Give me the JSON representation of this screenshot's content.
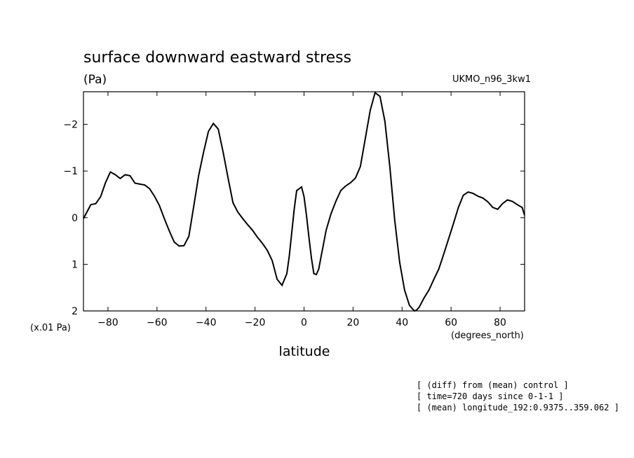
{
  "chart_data": {
    "type": "line",
    "title": "surface downward eastward stress",
    "units_label": "(Pa)",
    "model_label": "UKMO_n96_3kw1",
    "xlabel": "latitude",
    "x_units": "(degrees_north)",
    "y_scale_label": "(x.01 Pa)",
    "xlim": [
      -90,
      90
    ],
    "ylim": [
      2,
      -2.7
    ],
    "y_inverted": true,
    "xticks": [
      -80,
      -60,
      -40,
      -20,
      0,
      20,
      40,
      60,
      80
    ],
    "xtick_labels": [
      "−80",
      "−60",
      "−40",
      "−20",
      "0",
      "20",
      "40",
      "60",
      "80"
    ],
    "yticks": [
      -2,
      -1,
      0,
      1,
      2
    ],
    "ytick_labels": [
      "−2",
      "−1",
      "0",
      "1",
      "2"
    ],
    "grid": false,
    "series": [
      {
        "x": [
          -90,
          -89,
          -87,
          -85,
          -83,
          -81,
          -79,
          -77,
          -75,
          -73,
          -71,
          -69,
          -67,
          -65,
          -63,
          -61,
          -59,
          -57,
          -55,
          -53,
          -51,
          -49,
          -47,
          -45,
          -43,
          -41,
          -39,
          -37,
          -35,
          -33,
          -31,
          -29,
          -27,
          -25,
          -23,
          -21,
          -19,
          -17,
          -15,
          -13,
          -11,
          -9,
          -7,
          -6,
          -5,
          -4,
          -3,
          -1,
          0,
          1,
          2,
          3,
          4,
          5,
          6,
          7,
          8,
          9,
          11,
          13,
          15,
          17,
          19,
          21,
          23,
          25,
          27,
          29,
          31,
          33,
          35,
          37,
          39,
          41,
          43,
          45,
          46,
          47,
          49,
          51,
          53,
          55,
          57,
          59,
          61,
          63,
          65,
          67,
          69,
          71,
          73,
          75,
          77,
          79,
          81,
          83,
          85,
          87,
          89,
          90
        ],
        "y": [
          0.02,
          -0.08,
          -0.28,
          -0.3,
          -0.45,
          -0.75,
          -0.98,
          -0.92,
          -0.84,
          -0.92,
          -0.9,
          -0.74,
          -0.72,
          -0.7,
          -0.62,
          -0.46,
          -0.26,
          0.02,
          0.28,
          0.52,
          0.61,
          0.6,
          0.4,
          -0.25,
          -0.9,
          -1.4,
          -1.85,
          -2.02,
          -1.9,
          -1.4,
          -0.85,
          -0.32,
          -0.12,
          0.02,
          0.15,
          0.27,
          0.42,
          0.55,
          0.7,
          0.92,
          1.32,
          1.45,
          1.2,
          0.82,
          0.32,
          -0.18,
          -0.58,
          -0.66,
          -0.45,
          -0.05,
          0.42,
          0.86,
          1.2,
          1.22,
          1.1,
          0.82,
          0.55,
          0.27,
          -0.08,
          -0.35,
          -0.58,
          -0.68,
          -0.75,
          -0.85,
          -1.1,
          -1.7,
          -2.3,
          -2.68,
          -2.6,
          -2.07,
          -1.1,
          0.05,
          0.95,
          1.55,
          1.88,
          2.0,
          1.98,
          1.92,
          1.72,
          1.55,
          1.32,
          1.1,
          0.78,
          0.45,
          0.12,
          -0.22,
          -0.48,
          -0.55,
          -0.52,
          -0.46,
          -0.42,
          -0.34,
          -0.22,
          -0.18,
          -0.3,
          -0.38,
          -0.35,
          -0.28,
          -0.22,
          -0.05
        ]
      }
    ],
    "notes": [
      "[ (diff) from (mean) control ]",
      "[ time=720 days since 0-1-1 ]",
      "[ (mean) longitude_192:0.9375..359.062 ]"
    ]
  }
}
